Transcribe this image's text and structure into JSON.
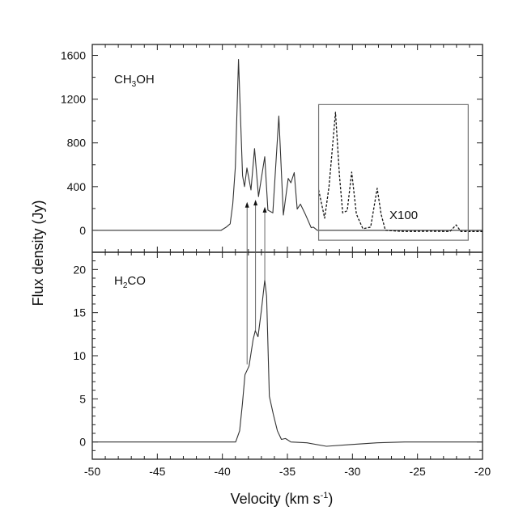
{
  "chart_data": [
    {
      "type": "line",
      "panel": "top",
      "species_label": {
        "main1": "CH",
        "sub1": "3",
        "main2": "OH"
      },
      "xlim": [
        -50,
        -20
      ],
      "ylim": [
        -200,
        1700
      ],
      "yticks": [
        0,
        400,
        800,
        1200,
        1600
      ],
      "yticklabels": [
        "0",
        "400",
        "800",
        "1200",
        "1600"
      ],
      "yminor_step": 200,
      "series": [
        {
          "name": "CH3OH",
          "style": "solid",
          "x": [
            -50,
            -40.1,
            -39.7,
            -39.4,
            -39.2,
            -39.0,
            -38.76,
            -38.45,
            -38.3,
            -38.11,
            -37.8,
            -37.53,
            -37.22,
            -36.74,
            -36.5,
            -36.12,
            -35.66,
            -35.31,
            -34.94,
            -34.73,
            -34.48,
            -34.25,
            -34.0,
            -33.63,
            -33.17,
            -33.0,
            -32.7,
            -20
          ],
          "y": [
            0,
            0,
            30,
            60,
            240,
            580,
            1563,
            500,
            400,
            570,
            370,
            748,
            309,
            674,
            185,
            160,
            1046,
            140,
            475,
            435,
            528,
            195,
            240,
            150,
            25,
            30,
            0,
            0
          ]
        },
        {
          "name": "CH3OH x100",
          "style": "dashed",
          "x": [
            -32.6,
            -32.14,
            -31.8,
            -31.3,
            -31.0,
            -30.75,
            -30.4,
            -30.06,
            -29.7,
            -29.2,
            -28.6,
            -28.1,
            -27.8,
            -27.47,
            -26,
            -24,
            -22.5,
            -22.03,
            -21.66,
            -20
          ],
          "y": [
            370,
            111,
            400,
            1080,
            500,
            160,
            180,
            533,
            150,
            15,
            30,
            385,
            150,
            0,
            -10,
            -8,
            -10,
            50,
            -10,
            -10
          ]
        }
      ],
      "annotations": {
        "scale": "X100"
      },
      "inset_box": {
        "xrange": [
          -32.6,
          -21.1
        ],
        "yrange": [
          -90,
          1150
        ]
      },
      "arrows_x": [
        -38.1,
        -37.45,
        -36.74
      ]
    },
    {
      "type": "line",
      "panel": "bottom",
      "species_label": {
        "main1": "H",
        "sub1": "2",
        "main2": "CO"
      },
      "xlim": [
        -50,
        -20
      ],
      "ylim": [
        -2,
        22
      ],
      "xticks": [
        -50,
        -45,
        -40,
        -35,
        -30,
        -25,
        -20
      ],
      "xticklabels": [
        "-50",
        "-45",
        "-40",
        "-35",
        "-30",
        "-25",
        "-20"
      ],
      "xminor_step": 1,
      "yticks": [
        0,
        5,
        10,
        15,
        20
      ],
      "yticklabels": [
        "0",
        "5",
        "10",
        "15",
        "20"
      ],
      "yminor_step": 1,
      "series": [
        {
          "name": "H2CO",
          "style": "solid",
          "x": [
            -50,
            -38.98,
            -38.67,
            -38.46,
            -38.26,
            -37.95,
            -37.63,
            -37.47,
            -37.26,
            -37.0,
            -36.74,
            -36.6,
            -36.39,
            -36.08,
            -35.77,
            -35.46,
            -35.15,
            -34.73,
            -33.5,
            -32.0,
            -30.2,
            -28.1,
            -26,
            -20
          ],
          "y": [
            0,
            0,
            1.3,
            4.4,
            7.8,
            8.8,
            11.9,
            12.9,
            12.2,
            15.3,
            18.75,
            16.9,
            5.3,
            3.2,
            1.3,
            0.3,
            0.4,
            0.0,
            -0.1,
            -0.5,
            -0.3,
            -0.1,
            0,
            0
          ]
        }
      ],
      "arrow_starts_y": [
        9,
        12.9,
        18.7
      ]
    }
  ],
  "axes": {
    "ylabel": "Flux density (Jy)",
    "xlabel_main": "Velocity (km s",
    "xlabel_sup": "-1",
    "xlabel_close": ")"
  }
}
